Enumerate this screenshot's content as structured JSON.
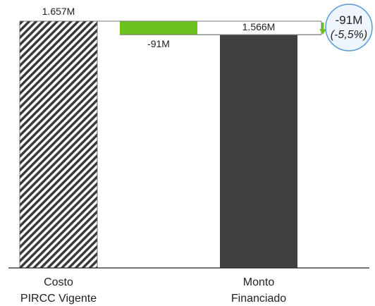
{
  "chart_data": {
    "type": "waterfall",
    "categories": [
      "Costo\nPIRCC Vigente",
      "",
      "Monto\nFinanciado"
    ],
    "steps": [
      {
        "category": "Costo PIRCC Vigente",
        "kind": "total",
        "value": 1657,
        "label": "1.657M",
        "style": "hatched"
      },
      {
        "category": "",
        "kind": "delta",
        "value": -91,
        "label": "-91M",
        "color": "#6cc21d"
      },
      {
        "category": "Monto Financiado",
        "kind": "total",
        "value": 1566,
        "label": "1.566M",
        "color": "#404040"
      }
    ],
    "unit": "M",
    "ylim": [
      0,
      1657
    ],
    "difference": {
      "value": -91,
      "label": "-91M",
      "percent": -5.5,
      "percent_label": "(-5,5%)",
      "arrow_color": "#6cc21d"
    },
    "colors": {
      "total": "#404040",
      "delta": "#6cc21d",
      "hatch": "#3a3a3a",
      "bubble_border": "#5b9bd5",
      "bubble_fill": "#eef5fc"
    },
    "grid": false,
    "legend": "none"
  }
}
